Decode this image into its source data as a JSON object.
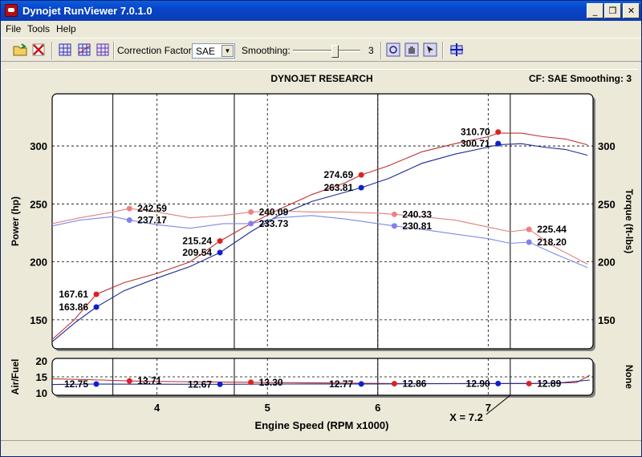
{
  "window": {
    "title": "Dynojet RunViewer 7.0.1.0",
    "controls": [
      "_",
      "❐",
      "✕"
    ]
  },
  "menu": {
    "items": [
      "File",
      "Tools",
      "Help"
    ]
  },
  "toolbar": {
    "correction_label": "Correction Factor:",
    "correction_value": "SAE",
    "smoothing_label": "Smoothing:",
    "smoothing_value": "3",
    "smoothing_level": 3
  },
  "chart": {
    "header_center": "DYNOJET RESEARCH",
    "header_right": "CF: SAE  Smoothing: 3",
    "cursor_label": "X = 7.2",
    "upper": {
      "left_axis_label": "Power (hp)",
      "right_axis_label": "Torque (ft-lbs)",
      "y_ticks": [
        150,
        200,
        250,
        300
      ]
    },
    "lower": {
      "left_axis_label": "Air/Fuel",
      "right_axis_label": "None",
      "y_ticks": [
        10,
        15,
        20
      ]
    },
    "x_axis_label": "Engine Speed (RPM x1000)",
    "x_ticks": [
      4,
      5,
      6,
      7
    ],
    "markers": [
      {
        "x": 3.45,
        "y": 172,
        "text": "167.61",
        "color": "#e02020",
        "side": "left"
      },
      {
        "x": 3.45,
        "y": 161,
        "text": "163.86",
        "color": "#1020d0",
        "side": "left"
      },
      {
        "x": 3.75,
        "y": 246,
        "text": "242.59",
        "color": "#f08080",
        "side": "right"
      },
      {
        "x": 3.75,
        "y": 236,
        "text": "237.17",
        "color": "#8080f0",
        "side": "right"
      },
      {
        "x": 4.57,
        "y": 218,
        "text": "215.24",
        "color": "#e02020",
        "side": "left"
      },
      {
        "x": 4.57,
        "y": 208,
        "text": "209.54",
        "color": "#1020d0",
        "side": "left"
      },
      {
        "x": 4.85,
        "y": 243,
        "text": "240.09",
        "color": "#f08080",
        "side": "right"
      },
      {
        "x": 4.85,
        "y": 233,
        "text": "233.73",
        "color": "#8080f0",
        "side": "right"
      },
      {
        "x": 5.85,
        "y": 275,
        "text": "274.69",
        "color": "#e02020",
        "side": "left"
      },
      {
        "x": 5.85,
        "y": 264,
        "text": "263.81",
        "color": "#1020d0",
        "side": "left"
      },
      {
        "x": 6.15,
        "y": 241,
        "text": "240.33",
        "color": "#f08080",
        "side": "right"
      },
      {
        "x": 6.15,
        "y": 231,
        "text": "230.81",
        "color": "#8080f0",
        "side": "right"
      },
      {
        "x": 7.09,
        "y": 312,
        "text": "310.70",
        "color": "#e02020",
        "side": "left"
      },
      {
        "x": 7.09,
        "y": 302,
        "text": "300.71",
        "color": "#1020d0",
        "side": "left"
      },
      {
        "x": 7.37,
        "y": 228,
        "text": "225.44",
        "color": "#f08080",
        "side": "right"
      },
      {
        "x": 7.37,
        "y": 217,
        "text": "218.20",
        "color": "#8080f0",
        "side": "right"
      }
    ],
    "afr_markers": [
      {
        "x": 3.45,
        "y": 12.75,
        "text": "12.75",
        "color": "#1020d0",
        "side": "left"
      },
      {
        "x": 3.75,
        "y": 13.71,
        "text": "13.71",
        "color": "#e02020",
        "side": "right"
      },
      {
        "x": 4.57,
        "y": 12.67,
        "text": "12.67",
        "color": "#1020d0",
        "side": "left"
      },
      {
        "x": 4.85,
        "y": 13.3,
        "text": "13.30",
        "color": "#e02020",
        "side": "right"
      },
      {
        "x": 5.85,
        "y": 12.77,
        "text": "12.77",
        "color": "#1020d0",
        "side": "left"
      },
      {
        "x": 6.15,
        "y": 12.86,
        "text": "12.86",
        "color": "#e02020",
        "side": "right"
      },
      {
        "x": 7.09,
        "y": 12.9,
        "text": "12.90",
        "color": "#1020d0",
        "side": "left"
      },
      {
        "x": 7.37,
        "y": 12.89,
        "text": "12.89",
        "color": "#e02020",
        "side": "right"
      }
    ]
  },
  "chart_data": {
    "type": "line",
    "title": "DYNOJET RESEARCH",
    "xlabel": "Engine Speed (RPM x1000)",
    "ylabel": "Power (hp)",
    "y2label": "Torque (ft-lbs)",
    "xlim": [
      3.05,
      7.95
    ],
    "ylim": [
      125,
      345
    ],
    "cursor_x": [
      3.6,
      4.7,
      6.0,
      7.2
    ],
    "series": [
      {
        "group": "power",
        "color": "#c03030",
        "x": [
          3.05,
          3.25,
          3.45,
          3.7,
          4.0,
          4.3,
          4.57,
          4.85,
          5.1,
          5.4,
          5.7,
          5.85,
          6.1,
          6.4,
          6.7,
          7.0,
          7.09,
          7.3,
          7.5,
          7.7,
          7.9
        ],
        "y": [
          133,
          150,
          172,
          182,
          190,
          200,
          218,
          233,
          245,
          258,
          268,
          275,
          283,
          295,
          302,
          308,
          311,
          311,
          308,
          306,
          301
        ]
      },
      {
        "group": "power",
        "color": "#1a2a9a",
        "x": [
          3.05,
          3.25,
          3.45,
          3.7,
          4.0,
          4.3,
          4.57,
          4.85,
          5.1,
          5.4,
          5.7,
          5.85,
          6.1,
          6.4,
          6.7,
          7.0,
          7.09,
          7.3,
          7.5,
          7.7,
          7.9
        ],
        "y": [
          131,
          147,
          161,
          175,
          186,
          196,
          208,
          226,
          240,
          252,
          260,
          264,
          272,
          285,
          293,
          299,
          301,
          302,
          299,
          297,
          292
        ]
      },
      {
        "group": "torque",
        "color": "#e08080",
        "x": [
          3.05,
          3.3,
          3.6,
          3.75,
          4.0,
          4.3,
          4.6,
          4.85,
          5.1,
          5.4,
          5.7,
          6.0,
          6.15,
          6.4,
          6.7,
          7.0,
          7.2,
          7.37,
          7.6,
          7.9
        ],
        "y": [
          233,
          238,
          243,
          246,
          243,
          238,
          240,
          243,
          244,
          243,
          243,
          242,
          241,
          239,
          236,
          230,
          226,
          228,
          213,
          198
        ]
      },
      {
        "group": "torque",
        "color": "#8088e8",
        "x": [
          3.05,
          3.3,
          3.6,
          3.75,
          4.0,
          4.3,
          4.6,
          4.85,
          5.1,
          5.4,
          5.7,
          6.0,
          6.15,
          6.4,
          6.7,
          7.0,
          7.2,
          7.37,
          7.6,
          7.9
        ],
        "y": [
          231,
          236,
          239,
          236,
          232,
          229,
          233,
          233,
          238,
          240,
          237,
          233,
          231,
          228,
          224,
          220,
          216,
          217,
          207,
          195
        ]
      },
      {
        "group": "afr",
        "color": "#c03030",
        "x": [
          3.05,
          3.5,
          3.75,
          4.2,
          4.85,
          5.5,
          6.15,
          6.8,
          7.37,
          7.8,
          7.92
        ],
        "y": [
          14.4,
          14.0,
          13.7,
          13.5,
          13.3,
          13.1,
          12.9,
          12.9,
          12.9,
          13.2,
          15.5
        ]
      },
      {
        "group": "afr",
        "color": "#1a2a9a",
        "x": [
          3.05,
          3.45,
          4.0,
          4.57,
          5.2,
          5.85,
          6.5,
          7.09,
          7.6,
          7.92
        ],
        "y": [
          12.6,
          12.75,
          12.7,
          12.67,
          12.75,
          12.77,
          12.85,
          12.9,
          12.95,
          14.0
        ]
      }
    ]
  }
}
